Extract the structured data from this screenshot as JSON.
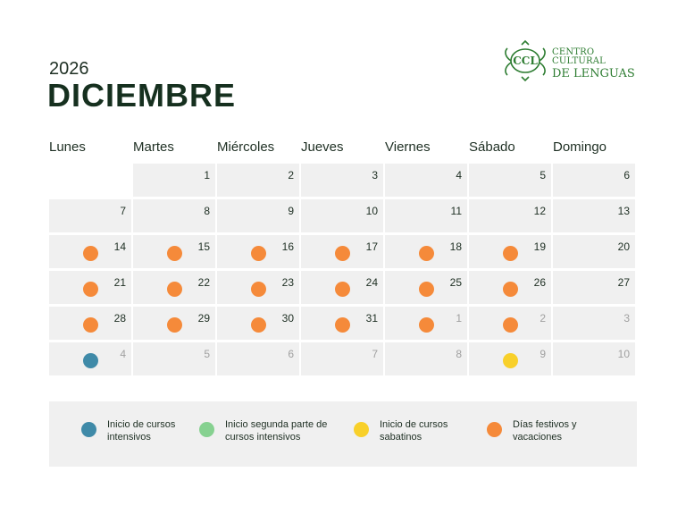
{
  "header": {
    "year": "2026",
    "month": "DICIEMBRE"
  },
  "logo": {
    "monogram": "CCL",
    "line1": "CENTRO CULTURAL",
    "line2": "DE LENGUAS",
    "color": "#2e7d32"
  },
  "weekdays": [
    "Lunes",
    "Martes",
    "Miércoles",
    "Jueves",
    "Viernes",
    "Sábado",
    "Domingo"
  ],
  "colors": {
    "intensivos": "#3f8aa8",
    "segunda": "#86d190",
    "sabatinos": "#f8d02a",
    "festivos": "#f58a3a"
  },
  "weeks": [
    [
      {
        "d": "",
        "empty": true
      },
      {
        "d": "1"
      },
      {
        "d": "2"
      },
      {
        "d": "3"
      },
      {
        "d": "4"
      },
      {
        "d": "5"
      },
      {
        "d": "6"
      }
    ],
    [
      {
        "d": "7"
      },
      {
        "d": "8"
      },
      {
        "d": "9"
      },
      {
        "d": "10"
      },
      {
        "d": "11"
      },
      {
        "d": "12"
      },
      {
        "d": "13"
      }
    ],
    [
      {
        "d": "14",
        "dot": "festivos"
      },
      {
        "d": "15",
        "dot": "festivos"
      },
      {
        "d": "16",
        "dot": "festivos"
      },
      {
        "d": "17",
        "dot": "festivos"
      },
      {
        "d": "18",
        "dot": "festivos"
      },
      {
        "d": "19",
        "dot": "festivos"
      },
      {
        "d": "20"
      }
    ],
    [
      {
        "d": "21",
        "dot": "festivos"
      },
      {
        "d": "22",
        "dot": "festivos"
      },
      {
        "d": "23",
        "dot": "festivos"
      },
      {
        "d": "24",
        "dot": "festivos"
      },
      {
        "d": "25",
        "dot": "festivos"
      },
      {
        "d": "26",
        "dot": "festivos"
      },
      {
        "d": "27"
      }
    ],
    [
      {
        "d": "28",
        "dot": "festivos"
      },
      {
        "d": "29",
        "dot": "festivos"
      },
      {
        "d": "30",
        "dot": "festivos"
      },
      {
        "d": "31",
        "dot": "festivos"
      },
      {
        "d": "1",
        "other": true,
        "dot": "festivos"
      },
      {
        "d": "2",
        "other": true,
        "dot": "festivos"
      },
      {
        "d": "3",
        "other": true
      }
    ],
    [
      {
        "d": "4",
        "other": true,
        "dot": "intensivos"
      },
      {
        "d": "5",
        "other": true
      },
      {
        "d": "6",
        "other": true
      },
      {
        "d": "7",
        "other": true
      },
      {
        "d": "8",
        "other": true
      },
      {
        "d": "9",
        "other": true,
        "dot": "sabatinos"
      },
      {
        "d": "10",
        "other": true
      }
    ]
  ],
  "legend": [
    {
      "key": "intensivos",
      "label": "Inicio de cursos\nintensivos"
    },
    {
      "key": "segunda",
      "label": "Inicio segunda parte de\ncursos intensivos"
    },
    {
      "key": "sabatinos",
      "label": "Inicio de cursos\nsabatinos"
    },
    {
      "key": "festivos",
      "label": "Días festivos y\nvacaciones"
    }
  ]
}
